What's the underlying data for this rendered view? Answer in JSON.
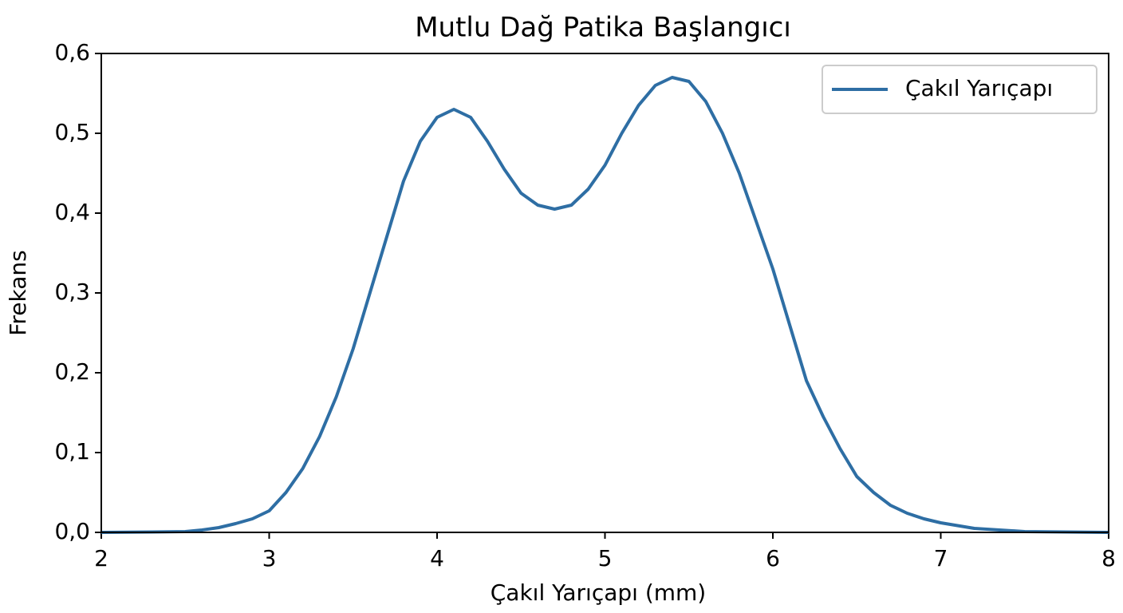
{
  "chart_data": {
    "type": "line",
    "title": "Mutlu Dağ Patika Başlangıcı",
    "x_label": "Çakıl Yarıçapı (mm)",
    "y_label": "Frekans",
    "x": [
      2.0,
      2.3,
      2.5,
      2.6,
      2.7,
      2.8,
      2.9,
      3.0,
      3.1,
      3.2,
      3.3,
      3.4,
      3.5,
      3.6,
      3.7,
      3.8,
      3.9,
      4.0,
      4.1,
      4.2,
      4.3,
      4.4,
      4.5,
      4.6,
      4.7,
      4.8,
      4.9,
      5.0,
      5.1,
      5.2,
      5.3,
      5.4,
      5.5,
      5.6,
      5.7,
      5.8,
      5.9,
      6.0,
      6.1,
      6.2,
      6.3,
      6.4,
      6.5,
      6.6,
      6.7,
      6.8,
      6.9,
      7.0,
      7.2,
      7.5,
      8.0
    ],
    "series": [
      {
        "name": "Çakıl Yarıçapı",
        "color": "#2e6ea4",
        "values": [
          0,
          0.0005,
          0.001,
          0.003,
          0.006,
          0.011,
          0.017,
          0.027,
          0.05,
          0.08,
          0.12,
          0.17,
          0.23,
          0.3,
          0.37,
          0.44,
          0.49,
          0.52,
          0.53,
          0.52,
          0.49,
          0.455,
          0.425,
          0.41,
          0.405,
          0.41,
          0.43,
          0.46,
          0.5,
          0.535,
          0.56,
          0.57,
          0.565,
          0.54,
          0.5,
          0.45,
          0.39,
          0.33,
          0.26,
          0.19,
          0.145,
          0.105,
          0.07,
          0.05,
          0.034,
          0.024,
          0.017,
          0.012,
          0.005,
          0.001,
          0
        ]
      }
    ],
    "xlim": [
      2,
      8
    ],
    "ylim": [
      0,
      0.6
    ],
    "xticks": [
      2,
      3,
      4,
      5,
      6,
      7,
      8
    ],
    "yticks": [
      {
        "value": 0,
        "label": "0,0"
      },
      {
        "value": 0.1,
        "label": "0,1"
      },
      {
        "value": 0.2,
        "label": "0,2"
      },
      {
        "value": 0.3,
        "label": "0,3"
      },
      {
        "value": 0.4,
        "label": "0,4"
      },
      {
        "value": 0.5,
        "label": "0,5"
      },
      {
        "value": 0.6,
        "label": "0,6"
      }
    ],
    "legend": "upper right"
  }
}
